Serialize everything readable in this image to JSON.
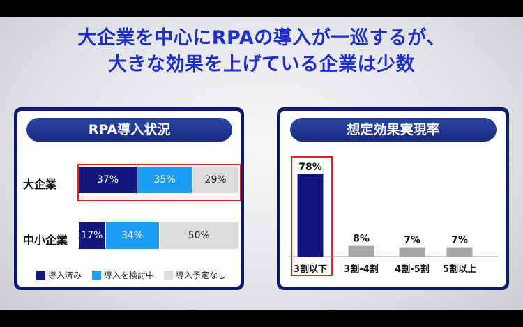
{
  "headline": {
    "line1": "大企業を中心にRPAの導入が一巡するが、",
    "line2": "大きな効果を上げている企業は少数"
  },
  "colors": {
    "headline": "#1f2ecf",
    "panel_border": "#0f1a6e",
    "implemented": "#131780",
    "considering": "#1e9bf2",
    "not_planned": "#dcdcdc",
    "bar_main": "#131780",
    "bar_other": "#a6a6a6",
    "highlight": "#e02222"
  },
  "chart_data": [
    {
      "type": "bar",
      "orientation": "horizontal",
      "stacked": true,
      "title": "RPA導入状況",
      "categories": [
        "大企業",
        "中小企業"
      ],
      "series": [
        {
          "name": "導入済み",
          "values": [
            37,
            17
          ],
          "labels": [
            "37%",
            "17%"
          ]
        },
        {
          "name": "導入を検討中",
          "values": [
            35,
            34
          ],
          "labels": [
            "35%",
            "34%"
          ]
        },
        {
          "name": "導入予定なし",
          "values": [
            29,
            50
          ],
          "labels": [
            "29%",
            "50%"
          ]
        }
      ],
      "legend": "bottom",
      "highlighted_category": "大企業"
    },
    {
      "type": "bar",
      "title": "想定効果実現率",
      "categories": [
        "3割以下",
        "3割-4割",
        "4割-5割",
        "5割以上"
      ],
      "values": [
        78,
        8,
        7,
        7
      ],
      "labels": [
        "78%",
        "8%",
        "7%",
        "7%"
      ],
      "ylim": [
        0,
        100
      ],
      "highlighted_category": "3割以下"
    }
  ]
}
